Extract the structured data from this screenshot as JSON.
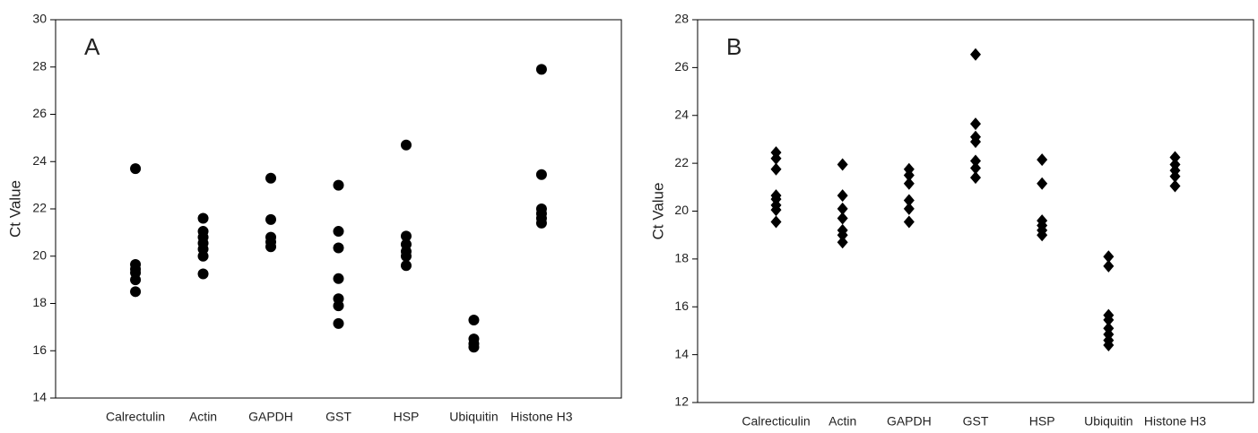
{
  "chart_data": [
    {
      "type": "strip",
      "panel_label": "A",
      "y_label": "Ct Value",
      "marker": "circle",
      "color": "#000000",
      "categories": [
        "Calrectulin",
        "Actin",
        "GAPDH",
        "GST",
        "HSP",
        "Ubiquitin",
        "Histone H3"
      ],
      "values": [
        [
          23.7,
          19.65,
          19.45,
          19.3,
          19.0,
          18.5
        ],
        [
          21.6,
          21.05,
          20.8,
          20.55,
          20.3,
          20.0,
          19.25
        ],
        [
          23.3,
          21.55,
          20.8,
          20.6,
          20.4
        ],
        [
          23.0,
          21.05,
          20.35,
          19.05,
          18.2,
          17.9,
          17.15
        ],
        [
          24.7,
          20.85,
          20.5,
          20.2,
          20.0,
          19.6
        ],
        [
          17.3,
          16.5,
          16.3,
          16.15
        ],
        [
          27.9,
          23.45,
          22.0,
          21.8,
          21.6,
          21.4
        ]
      ],
      "ylim": [
        14,
        30
      ],
      "yticks": [
        14,
        16,
        18,
        20,
        22,
        24,
        26,
        28,
        30
      ]
    },
    {
      "type": "strip",
      "panel_label": "B",
      "y_label": "Ct Value",
      "marker": "diamond",
      "color": "#000000",
      "categories": [
        "Calrecticulin",
        "Actin",
        "GAPDH",
        "GST",
        "HSP",
        "Ubiquitin",
        "Histone H3"
      ],
      "values": [
        [
          22.45,
          22.2,
          21.75,
          20.65,
          20.5,
          20.25,
          20.05,
          19.55
        ],
        [
          21.95,
          20.65,
          20.1,
          19.7,
          19.2,
          19.0,
          18.7
        ],
        [
          21.75,
          21.5,
          21.15,
          20.45,
          20.1,
          19.55
        ],
        [
          26.55,
          23.65,
          23.1,
          22.9,
          22.1,
          21.8,
          21.4
        ],
        [
          22.15,
          21.15,
          19.6,
          19.4,
          19.2,
          19.0
        ],
        [
          18.1,
          17.7,
          15.65,
          15.45,
          15.1,
          14.85,
          14.6,
          14.4
        ],
        [
          22.25,
          21.95,
          21.7,
          21.45,
          21.05
        ]
      ],
      "ylim": [
        12,
        28
      ],
      "yticks": [
        12,
        14,
        16,
        18,
        20,
        22,
        24,
        26,
        28
      ]
    }
  ]
}
